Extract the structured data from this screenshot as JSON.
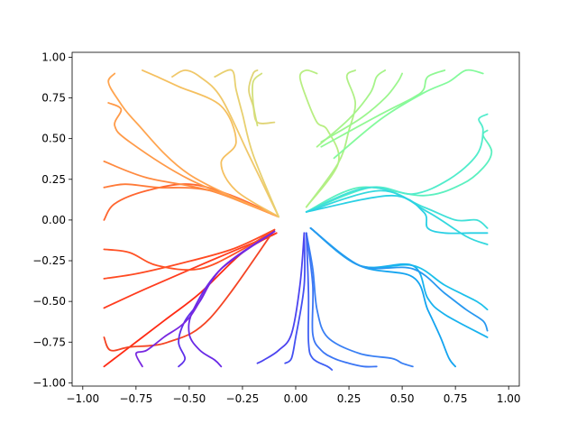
{
  "chart_data": {
    "type": "line",
    "title": "",
    "xlabel": "",
    "ylabel": "",
    "xlim": [
      -1.05,
      1.05
    ],
    "ylim": [
      -1.02,
      1.03
    ],
    "xticks": [
      -1.0,
      -0.75,
      -0.5,
      -0.25,
      0.0,
      0.25,
      0.5,
      0.75,
      1.0
    ],
    "xtick_labels": [
      "−1.00",
      "−0.75",
      "−0.50",
      "−0.25",
      "0.00",
      "0.25",
      "0.50",
      "0.75",
      "1.00"
    ],
    "yticks": [
      1.0,
      0.75,
      0.5,
      0.25,
      0.0,
      -0.25,
      -0.5,
      -0.75,
      -1.0
    ],
    "ytick_labels": [
      "1.00",
      "0.75",
      "0.50",
      "0.25",
      "0.00",
      "−0.25",
      "−0.50",
      "−0.75",
      "−1.00"
    ],
    "grid": false,
    "colormap": "rainbow",
    "series": [
      {
        "color": "#ff2a14",
        "points": [
          [
            -0.09,
            -0.08
          ],
          [
            -0.25,
            -0.2
          ],
          [
            -0.45,
            -0.45
          ],
          [
            -0.62,
            -0.62
          ],
          [
            -0.9,
            -0.9
          ]
        ]
      },
      {
        "color": "#ff3c1e",
        "points": [
          [
            -0.09,
            -0.08
          ],
          [
            -0.4,
            -0.25
          ],
          [
            -0.7,
            -0.42
          ],
          [
            -0.9,
            -0.54
          ]
        ]
      },
      {
        "color": "#ff4a22",
        "points": [
          [
            -0.1,
            -0.06
          ],
          [
            -0.3,
            -0.18
          ],
          [
            -0.55,
            -0.27
          ],
          [
            -0.75,
            -0.33
          ],
          [
            -0.9,
            -0.36
          ]
        ]
      },
      {
        "color": "#ff5226",
        "points": [
          [
            -0.1,
            -0.06
          ],
          [
            -0.25,
            -0.18
          ],
          [
            -0.45,
            -0.3
          ],
          [
            -0.65,
            -0.28
          ],
          [
            -0.78,
            -0.2
          ],
          [
            -0.9,
            -0.18
          ]
        ]
      },
      {
        "color": "#f44424",
        "points": [
          [
            -0.1,
            -0.06
          ],
          [
            -0.4,
            -0.6
          ],
          [
            -0.6,
            -0.75
          ],
          [
            -0.78,
            -0.78
          ],
          [
            -0.87,
            -0.8
          ],
          [
            -0.9,
            -0.72
          ]
        ]
      },
      {
        "color": "#ff6630",
        "points": [
          [
            -0.08,
            0.02
          ],
          [
            -0.3,
            0.15
          ],
          [
            -0.5,
            0.22
          ],
          [
            -0.7,
            0.18
          ],
          [
            -0.85,
            0.1
          ],
          [
            -0.9,
            0.0
          ]
        ]
      },
      {
        "color": "#ff7a38",
        "points": [
          [
            -0.08,
            0.02
          ],
          [
            -0.4,
            0.18
          ],
          [
            -0.65,
            0.2
          ],
          [
            -0.8,
            0.22
          ],
          [
            -0.9,
            0.2
          ]
        ]
      },
      {
        "color": "#ff8a40",
        "points": [
          [
            -0.08,
            0.02
          ],
          [
            -0.4,
            0.18
          ],
          [
            -0.7,
            0.26
          ],
          [
            -0.9,
            0.36
          ]
        ]
      },
      {
        "color": "#ff9a48",
        "points": [
          [
            -0.08,
            0.02
          ],
          [
            -0.5,
            0.25
          ],
          [
            -0.78,
            0.48
          ],
          [
            -0.85,
            0.58
          ],
          [
            -0.82,
            0.68
          ],
          [
            -0.88,
            0.72
          ]
        ]
      },
      {
        "color": "#ffa550",
        "points": [
          [
            -0.08,
            0.02
          ],
          [
            -0.5,
            0.28
          ],
          [
            -0.75,
            0.6
          ],
          [
            -0.84,
            0.75
          ],
          [
            -0.88,
            0.85
          ],
          [
            -0.85,
            0.9
          ]
        ]
      },
      {
        "color": "#f5c060",
        "points": [
          [
            -0.08,
            0.02
          ],
          [
            -0.28,
            0.18
          ],
          [
            -0.35,
            0.35
          ],
          [
            -0.28,
            0.48
          ],
          [
            -0.35,
            0.7
          ],
          [
            -0.55,
            0.82
          ],
          [
            -0.65,
            0.88
          ],
          [
            -0.72,
            0.92
          ]
        ]
      },
      {
        "color": "#f0c86a",
        "points": [
          [
            -0.08,
            0.02
          ],
          [
            -0.22,
            0.4
          ],
          [
            -0.35,
            0.75
          ],
          [
            -0.45,
            0.88
          ],
          [
            -0.52,
            0.92
          ],
          [
            -0.58,
            0.88
          ]
        ]
      },
      {
        "color": "#e8d070",
        "points": [
          [
            -0.08,
            0.02
          ],
          [
            -0.2,
            0.4
          ],
          [
            -0.25,
            0.65
          ],
          [
            -0.28,
            0.8
          ],
          [
            -0.3,
            0.92
          ],
          [
            -0.38,
            0.88
          ]
        ]
      },
      {
        "color": "#e0d476",
        "points": [
          [
            -0.1,
            0.6
          ],
          [
            -0.18,
            0.6
          ],
          [
            -0.2,
            0.7
          ],
          [
            -0.22,
            0.8
          ],
          [
            -0.2,
            0.9
          ],
          [
            -0.18,
            0.92
          ]
        ]
      },
      {
        "color": "#d2e07a",
        "points": [
          [
            -0.18,
            0.58
          ],
          [
            -0.2,
            0.72
          ],
          [
            -0.2,
            0.85
          ],
          [
            -0.16,
            0.9
          ]
        ]
      },
      {
        "color": "#b8ee82",
        "points": [
          [
            0.05,
            0.08
          ],
          [
            0.2,
            0.35
          ],
          [
            0.15,
            0.55
          ],
          [
            0.1,
            0.6
          ],
          [
            0.05,
            0.75
          ],
          [
            0.02,
            0.88
          ],
          [
            0.05,
            0.92
          ],
          [
            0.1,
            0.9
          ]
        ]
      },
      {
        "color": "#b0f086",
        "points": [
          [
            0.05,
            0.08
          ],
          [
            0.2,
            0.35
          ],
          [
            0.25,
            0.55
          ],
          [
            0.28,
            0.72
          ],
          [
            0.24,
            0.88
          ],
          [
            0.28,
            0.92
          ]
        ]
      },
      {
        "color": "#a6f48a",
        "points": [
          [
            0.1,
            0.45
          ],
          [
            0.25,
            0.62
          ],
          [
            0.35,
            0.78
          ],
          [
            0.38,
            0.88
          ],
          [
            0.42,
            0.92
          ]
        ]
      },
      {
        "color": "#9cf68e",
        "points": [
          [
            0.12,
            0.48
          ],
          [
            0.3,
            0.62
          ],
          [
            0.42,
            0.75
          ],
          [
            0.48,
            0.85
          ],
          [
            0.5,
            0.9
          ]
        ]
      },
      {
        "color": "#90f894",
        "points": [
          [
            0.12,
            0.45
          ],
          [
            0.4,
            0.65
          ],
          [
            0.55,
            0.75
          ],
          [
            0.6,
            0.8
          ],
          [
            0.62,
            0.88
          ],
          [
            0.7,
            0.92
          ]
        ]
      },
      {
        "color": "#84fa9c",
        "points": [
          [
            0.18,
            0.38
          ],
          [
            0.4,
            0.62
          ],
          [
            0.6,
            0.78
          ],
          [
            0.72,
            0.85
          ],
          [
            0.8,
            0.92
          ],
          [
            0.88,
            0.9
          ]
        ]
      },
      {
        "color": "#5cf0c0",
        "points": [
          [
            0.05,
            0.05
          ],
          [
            0.3,
            0.2
          ],
          [
            0.6,
            0.15
          ],
          [
            0.78,
            0.22
          ],
          [
            0.88,
            0.32
          ],
          [
            0.92,
            0.42
          ],
          [
            0.88,
            0.52
          ],
          [
            0.9,
            0.55
          ]
        ]
      },
      {
        "color": "#52eccc",
        "points": [
          [
            0.05,
            0.05
          ],
          [
            0.35,
            0.2
          ],
          [
            0.55,
            0.16
          ],
          [
            0.72,
            0.25
          ],
          [
            0.85,
            0.4
          ],
          [
            0.88,
            0.55
          ],
          [
            0.86,
            0.62
          ],
          [
            0.9,
            0.65
          ]
        ]
      },
      {
        "color": "#40e0d8",
        "points": [
          [
            0.05,
            0.05
          ],
          [
            0.35,
            0.2
          ],
          [
            0.6,
            0.08
          ],
          [
            0.75,
            0.0
          ],
          [
            0.85,
            0.0
          ],
          [
            0.9,
            -0.05
          ]
        ]
      },
      {
        "color": "#34d8de",
        "points": [
          [
            0.05,
            0.05
          ],
          [
            0.4,
            0.18
          ],
          [
            0.62,
            0.05
          ],
          [
            0.8,
            -0.1
          ],
          [
            0.9,
            -0.15
          ]
        ]
      },
      {
        "color": "#2ad0e4",
        "points": [
          [
            0.05,
            0.05
          ],
          [
            0.45,
            0.15
          ],
          [
            0.6,
            0.05
          ],
          [
            0.62,
            -0.05
          ],
          [
            0.7,
            -0.08
          ],
          [
            0.82,
            -0.08
          ],
          [
            0.9,
            -0.08
          ]
        ]
      },
      {
        "color": "#1cc0ea",
        "points": [
          [
            0.07,
            -0.05
          ],
          [
            0.3,
            -0.28
          ],
          [
            0.55,
            -0.28
          ],
          [
            0.7,
            -0.4
          ],
          [
            0.85,
            -0.5
          ],
          [
            0.9,
            -0.55
          ]
        ]
      },
      {
        "color": "#18b2ee",
        "points": [
          [
            0.07,
            -0.05
          ],
          [
            0.3,
            -0.28
          ],
          [
            0.55,
            -0.28
          ],
          [
            0.62,
            -0.48
          ],
          [
            0.7,
            -0.58
          ],
          [
            0.9,
            -0.72
          ]
        ]
      },
      {
        "color": "#14a4f0",
        "points": [
          [
            0.07,
            -0.05
          ],
          [
            0.3,
            -0.28
          ],
          [
            0.55,
            -0.35
          ],
          [
            0.62,
            -0.55
          ],
          [
            0.68,
            -0.72
          ],
          [
            0.72,
            -0.85
          ],
          [
            0.75,
            -0.9
          ]
        ]
      },
      {
        "color": "#2898f0",
        "points": [
          [
            0.07,
            -0.05
          ],
          [
            0.3,
            -0.28
          ],
          [
            0.55,
            -0.3
          ],
          [
            0.7,
            -0.45
          ],
          [
            0.8,
            -0.55
          ],
          [
            0.88,
            -0.62
          ],
          [
            0.9,
            -0.68
          ]
        ]
      },
      {
        "color": "#3a80f4",
        "points": [
          [
            0.05,
            -0.08
          ],
          [
            0.08,
            -0.3
          ],
          [
            0.1,
            -0.55
          ],
          [
            0.15,
            -0.72
          ],
          [
            0.3,
            -0.82
          ],
          [
            0.45,
            -0.85
          ],
          [
            0.5,
            -0.88
          ],
          [
            0.55,
            -0.9
          ]
        ]
      },
      {
        "color": "#3c76f4",
        "points": [
          [
            0.05,
            -0.08
          ],
          [
            0.08,
            -0.4
          ],
          [
            0.08,
            -0.7
          ],
          [
            0.12,
            -0.8
          ],
          [
            0.18,
            -0.85
          ],
          [
            0.25,
            -0.88
          ],
          [
            0.32,
            -0.9
          ],
          [
            0.38,
            -0.9
          ]
        ]
      },
      {
        "color": "#4060f4",
        "points": [
          [
            0.05,
            -0.08
          ],
          [
            0.06,
            -0.45
          ],
          [
            0.06,
            -0.75
          ],
          [
            0.08,
            -0.85
          ],
          [
            0.15,
            -0.9
          ],
          [
            0.17,
            -0.92
          ]
        ]
      },
      {
        "color": "#4450f2",
        "points": [
          [
            0.04,
            -0.08
          ],
          [
            0.04,
            -0.4
          ],
          [
            0.0,
            -0.72
          ],
          [
            -0.02,
            -0.85
          ],
          [
            -0.05,
            -0.88
          ]
        ]
      },
      {
        "color": "#4c44f0",
        "points": [
          [
            0.04,
            -0.08
          ],
          [
            0.02,
            -0.4
          ],
          [
            -0.02,
            -0.7
          ],
          [
            -0.08,
            -0.8
          ],
          [
            -0.15,
            -0.86
          ],
          [
            -0.18,
            -0.88
          ]
        ]
      },
      {
        "color": "#5e30ea",
        "points": [
          [
            -0.1,
            -0.07
          ],
          [
            -0.35,
            -0.3
          ],
          [
            -0.45,
            -0.5
          ],
          [
            -0.52,
            -0.62
          ],
          [
            -0.55,
            -0.75
          ],
          [
            -0.52,
            -0.85
          ],
          [
            -0.55,
            -0.9
          ]
        ]
      },
      {
        "color": "#6a2ae6",
        "points": [
          [
            -0.1,
            -0.07
          ],
          [
            -0.35,
            -0.3
          ],
          [
            -0.48,
            -0.55
          ],
          [
            -0.5,
            -0.7
          ],
          [
            -0.45,
            -0.8
          ],
          [
            -0.38,
            -0.86
          ],
          [
            -0.35,
            -0.9
          ]
        ]
      },
      {
        "color": "#7828e0",
        "points": [
          [
            -0.1,
            -0.07
          ],
          [
            -0.35,
            -0.3
          ],
          [
            -0.5,
            -0.6
          ],
          [
            -0.62,
            -0.72
          ],
          [
            -0.7,
            -0.8
          ],
          [
            -0.75,
            -0.82
          ],
          [
            -0.72,
            -0.9
          ]
        ]
      }
    ]
  }
}
